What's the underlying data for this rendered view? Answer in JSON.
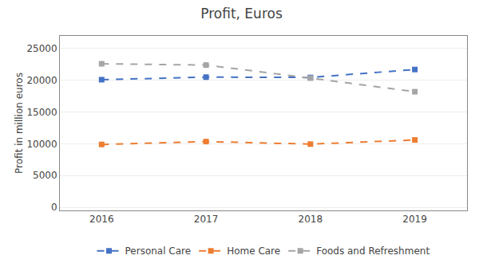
{
  "chart_data": {
    "type": "line",
    "title": "Profit, Euros",
    "ylabel": "Profit in million euros",
    "x": [
      2016,
      2017,
      2018,
      2019
    ],
    "series": [
      {
        "name": "Personal Care",
        "values": [
          20100,
          20500,
          20450,
          21700
        ],
        "color": "#4472C4",
        "marker": "square",
        "line_style": "dashed"
      },
      {
        "name": "Home Care",
        "values": [
          9900,
          10350,
          9950,
          10600
        ],
        "color": "#ED7D31",
        "marker": "square",
        "line_style": "dashed"
      },
      {
        "name": "Foods and Refreshment",
        "values": [
          22600,
          22400,
          20350,
          18200
        ],
        "color": "#A5A5A5",
        "marker": "square",
        "line_style": "dashed"
      }
    ],
    "xlim": [
      2015.6,
      2019.5
    ],
    "xticks": [
      2016,
      2017,
      2018,
      2019
    ],
    "ylim": [
      -500,
      27000
    ],
    "yticks": [
      0,
      5000,
      10000,
      15000,
      20000,
      25000
    ],
    "grid": "y",
    "legend": "bottom"
  }
}
